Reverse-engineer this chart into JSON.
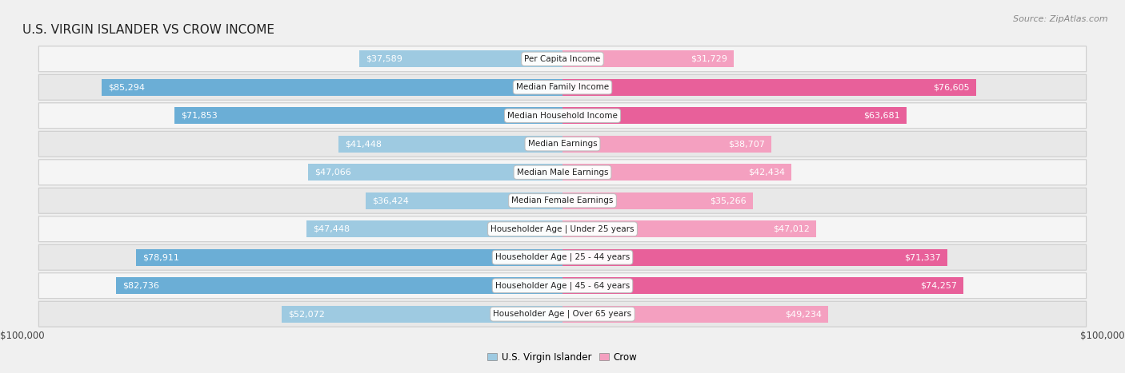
{
  "title": "U.S. VIRGIN ISLANDER VS CROW INCOME",
  "source": "Source: ZipAtlas.com",
  "categories": [
    "Per Capita Income",
    "Median Family Income",
    "Median Household Income",
    "Median Earnings",
    "Median Male Earnings",
    "Median Female Earnings",
    "Householder Age | Under 25 years",
    "Householder Age | 25 - 44 years",
    "Householder Age | 45 - 64 years",
    "Householder Age | Over 65 years"
  ],
  "left_values": [
    37589,
    85294,
    71853,
    41448,
    47066,
    36424,
    47448,
    78911,
    82736,
    52072
  ],
  "right_values": [
    31729,
    76605,
    63681,
    38707,
    42434,
    35266,
    47012,
    71337,
    74257,
    49234
  ],
  "left_labels": [
    "$37,589",
    "$85,294",
    "$71,853",
    "$41,448",
    "$47,066",
    "$36,424",
    "$47,448",
    "$78,911",
    "$82,736",
    "$52,072"
  ],
  "right_labels": [
    "$31,729",
    "$76,605",
    "$63,681",
    "$38,707",
    "$42,434",
    "$35,266",
    "$47,012",
    "$71,337",
    "$74,257",
    "$49,234"
  ],
  "left_color_large": "#6baed6",
  "left_color_small": "#9ecae1",
  "right_color_large": "#e8609a",
  "right_color_small": "#f4a0c0",
  "left_legend": "U.S. Virgin Islander",
  "right_legend": "Crow",
  "max_value": 100000,
  "large_threshold": 55000,
  "title_fontsize": 11,
  "source_fontsize": 8,
  "label_fontsize": 8,
  "category_fontsize": 7.5,
  "inside_label_color": "white",
  "outside_label_color": "#333333"
}
